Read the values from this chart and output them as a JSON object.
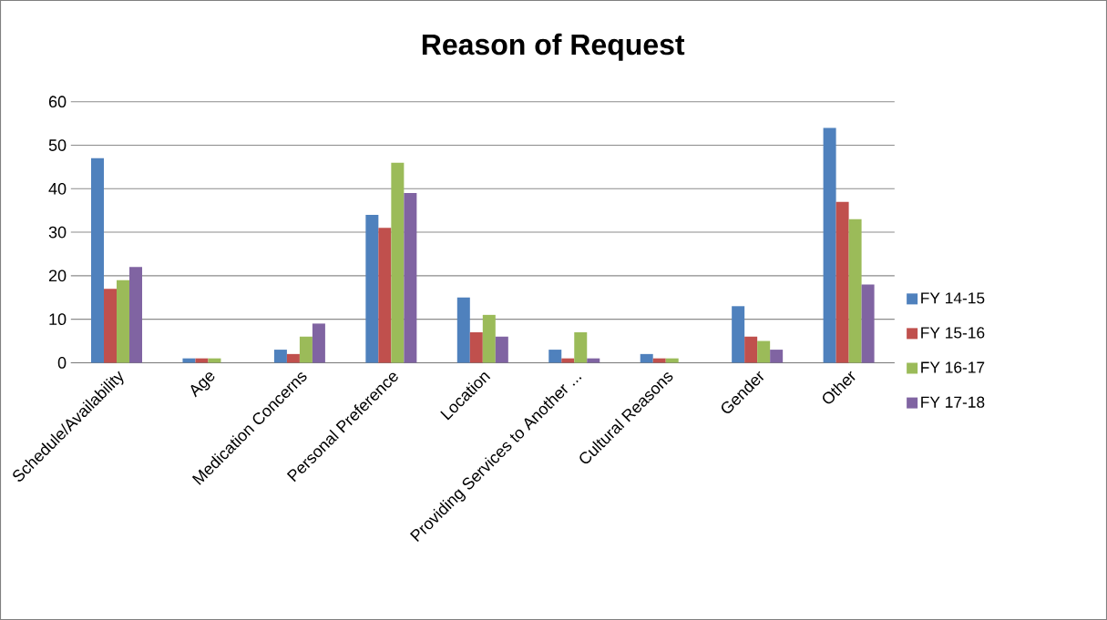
{
  "chart_data": {
    "type": "bar",
    "title": "Reason of Request",
    "categories": [
      "Schedule/Availability",
      "Age",
      "Medication Concerns",
      "Personal Preference",
      "Location",
      "Providing Services to Another ...",
      "Cultural Reasons",
      "Gender",
      "Other"
    ],
    "series": [
      {
        "name": "FY 14-15",
        "color": "#4f81bd",
        "values": [
          47,
          1,
          3,
          34,
          15,
          3,
          2,
          13,
          54
        ]
      },
      {
        "name": "FY 15-16",
        "color": "#c0504d",
        "values": [
          17,
          1,
          2,
          31,
          7,
          1,
          1,
          6,
          37
        ]
      },
      {
        "name": "FY 16-17",
        "color": "#9bbb59",
        "values": [
          19,
          1,
          6,
          46,
          11,
          7,
          1,
          5,
          33
        ]
      },
      {
        "name": "FY 17-18",
        "color": "#8064a2",
        "values": [
          22,
          0,
          9,
          39,
          6,
          1,
          0,
          3,
          18
        ]
      }
    ],
    "ylim": [
      0,
      60
    ],
    "yticks": [
      0,
      10,
      20,
      30,
      40,
      50,
      60
    ],
    "grid": "y",
    "legend": "right"
  }
}
